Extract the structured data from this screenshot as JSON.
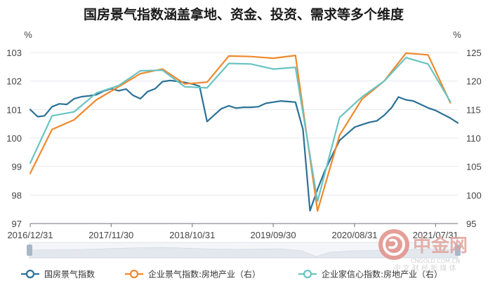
{
  "chart_data": {
    "type": "line",
    "title": "国房景气指数涵盖拿地、资金、投资、需求等多个维度",
    "y_left": {
      "unit_label": "%",
      "range": [
        97,
        103
      ],
      "ticks": [
        "97",
        "98",
        "99",
        "100",
        "101",
        "102",
        "103"
      ]
    },
    "y_right": {
      "unit_label": "%",
      "range": [
        95,
        125
      ],
      "ticks": [
        "95",
        "100",
        "105",
        "110",
        "115",
        "120",
        "125"
      ]
    },
    "x_range": [
      "2016-12-31",
      "2021-10-31"
    ],
    "x_ticks": [
      {
        "date": "2016-12-31",
        "label": "2016/12/31"
      },
      {
        "date": "2017-11-30",
        "label": "2017/11/30"
      },
      {
        "date": "2018-10-31",
        "label": "2018/10/31"
      },
      {
        "date": "2019-09-30",
        "label": "2019/09/30"
      },
      {
        "date": "2020-08-31",
        "label": "2020/08/31"
      },
      {
        "date": "2021-07-31",
        "label": "2021/07/31"
      }
    ],
    "grid": "horizontal",
    "legend_position": "bottom",
    "series": [
      {
        "name": "国房景气指数",
        "axis": "left",
        "color": "#2a7196",
        "points": [
          [
            "2016-12-31",
            101.0
          ],
          [
            "2017-01-31",
            100.75
          ],
          [
            "2017-02-28",
            100.78
          ],
          [
            "2017-03-31",
            101.1
          ],
          [
            "2017-04-30",
            101.2
          ],
          [
            "2017-05-31",
            101.18
          ],
          [
            "2017-06-30",
            101.38
          ],
          [
            "2017-07-31",
            101.45
          ],
          [
            "2017-08-31",
            101.48
          ],
          [
            "2017-09-30",
            101.52
          ],
          [
            "2017-10-31",
            101.65
          ],
          [
            "2017-11-30",
            101.73
          ],
          [
            "2017-12-31",
            101.66
          ],
          [
            "2018-01-31",
            101.72
          ],
          [
            "2018-02-28",
            101.5
          ],
          [
            "2018-03-31",
            101.38
          ],
          [
            "2018-04-30",
            101.63
          ],
          [
            "2018-05-31",
            101.73
          ],
          [
            "2018-06-30",
            101.98
          ],
          [
            "2018-07-31",
            102.02
          ],
          [
            "2018-08-31",
            101.99
          ],
          [
            "2018-09-30",
            101.95
          ],
          [
            "2018-10-31",
            101.9
          ],
          [
            "2018-11-30",
            101.82
          ],
          [
            "2018-12-31",
            100.58
          ],
          [
            "2019-01-31",
            100.82
          ],
          [
            "2019-02-28",
            101.03
          ],
          [
            "2019-03-31",
            101.13
          ],
          [
            "2019-04-30",
            101.05
          ],
          [
            "2019-05-31",
            101.08
          ],
          [
            "2019-06-30",
            101.08
          ],
          [
            "2019-07-31",
            101.1
          ],
          [
            "2019-08-31",
            101.22
          ],
          [
            "2019-09-30",
            101.26
          ],
          [
            "2019-10-31",
            101.3
          ],
          [
            "2019-11-30",
            101.28
          ],
          [
            "2019-12-31",
            101.26
          ],
          [
            "2020-01-31",
            100.3
          ],
          [
            "2020-02-29",
            97.45
          ],
          [
            "2020-03-31",
            98.2
          ],
          [
            "2020-04-30",
            98.85
          ],
          [
            "2020-05-31",
            99.4
          ],
          [
            "2020-06-30",
            99.92
          ],
          [
            "2020-07-31",
            100.15
          ],
          [
            "2020-08-31",
            100.38
          ],
          [
            "2020-09-30",
            100.47
          ],
          [
            "2020-10-31",
            100.55
          ],
          [
            "2020-11-30",
            100.6
          ],
          [
            "2020-12-31",
            100.8
          ],
          [
            "2021-01-31",
            101.07
          ],
          [
            "2021-02-28",
            101.44
          ],
          [
            "2021-03-31",
            101.34
          ],
          [
            "2021-04-30",
            101.3
          ],
          [
            "2021-05-31",
            101.18
          ],
          [
            "2021-06-30",
            101.06
          ],
          [
            "2021-07-31",
            100.97
          ],
          [
            "2021-08-31",
            100.83
          ],
          [
            "2021-09-30",
            100.7
          ],
          [
            "2021-10-31",
            100.53
          ]
        ]
      },
      {
        "name": "企业景气指数:房地产业（右）",
        "axis": "right",
        "color": "#f0882c",
        "points": [
          [
            "2016-12-31",
            103.8
          ],
          [
            "2017-03-31",
            111.5
          ],
          [
            "2017-06-30",
            113.2
          ],
          [
            "2017-09-30",
            116.7
          ],
          [
            "2017-12-31",
            119.0
          ],
          [
            "2018-03-31",
            121.3
          ],
          [
            "2018-06-30",
            122.1
          ],
          [
            "2018-09-30",
            119.5
          ],
          [
            "2018-12-31",
            119.8
          ],
          [
            "2019-03-31",
            124.4
          ],
          [
            "2019-06-30",
            124.3
          ],
          [
            "2019-09-30",
            124.0
          ],
          [
            "2019-12-31",
            124.5
          ],
          [
            "2020-03-31",
            97.2
          ],
          [
            "2020-06-30",
            110.5
          ],
          [
            "2020-09-30",
            116.8
          ],
          [
            "2020-12-31",
            120.0
          ],
          [
            "2021-03-31",
            124.9
          ],
          [
            "2021-06-30",
            124.6
          ],
          [
            "2021-09-30",
            116.2
          ]
        ]
      },
      {
        "name": "企业家信心指数:房地产业（右）",
        "axis": "right",
        "color": "#69c3c3",
        "points": [
          [
            "2016-12-31",
            105.6
          ],
          [
            "2017-03-31",
            113.9
          ],
          [
            "2017-06-30",
            114.6
          ],
          [
            "2017-09-30",
            117.9
          ],
          [
            "2017-12-31",
            119.2
          ],
          [
            "2018-03-31",
            121.8
          ],
          [
            "2018-06-30",
            121.9
          ],
          [
            "2018-09-30",
            119.0
          ],
          [
            "2018-12-31",
            118.8
          ],
          [
            "2019-03-31",
            123.1
          ],
          [
            "2019-06-30",
            123.0
          ],
          [
            "2019-09-30",
            122.1
          ],
          [
            "2019-12-31",
            122.4
          ],
          [
            "2020-03-31",
            98.9
          ],
          [
            "2020-06-30",
            113.6
          ],
          [
            "2020-09-30",
            117.2
          ],
          [
            "2020-12-31",
            120.0
          ],
          [
            "2021-03-31",
            124.1
          ],
          [
            "2021-06-30",
            123.0
          ],
          [
            "2021-09-30",
            116.4
          ]
        ]
      }
    ]
  },
  "watermark": {
    "brand": "中金网",
    "domain": "CNGOLD.COM.CN",
    "slogan": "中 文 财 经 新 媒 体"
  }
}
